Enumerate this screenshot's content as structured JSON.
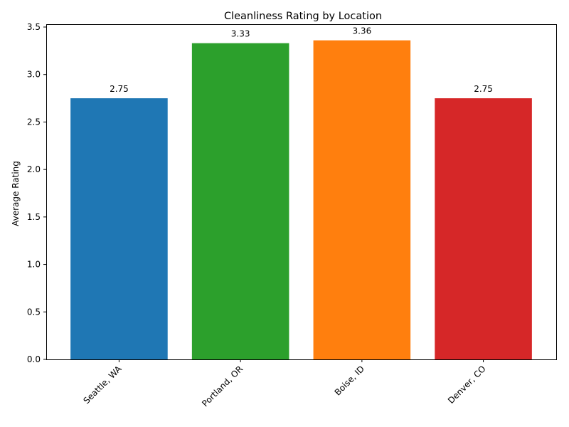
{
  "chart_data": {
    "type": "bar",
    "title": "Cleanliness Rating by Location",
    "xlabel": "",
    "ylabel": "Average Rating",
    "categories": [
      "Seattle, WA",
      "Portland, OR",
      "Boise, ID",
      "Denver, CO"
    ],
    "values": [
      2.75,
      3.33,
      3.36,
      2.75
    ],
    "data_labels": [
      "2.75",
      "3.33",
      "3.36",
      "2.75"
    ],
    "colors": [
      "#1f77b4",
      "#2ca02c",
      "#ff7f0e",
      "#d62728"
    ],
    "ylim": [
      0,
      3.53
    ],
    "yticks": [
      0.0,
      0.5,
      1.0,
      1.5,
      2.0,
      2.5,
      3.0,
      3.5
    ],
    "ytick_labels": [
      "0.0",
      "0.5",
      "1.0",
      "1.5",
      "2.0",
      "2.5",
      "3.0",
      "3.5"
    ],
    "grid": false,
    "legend": "none",
    "xtick_rotation_deg": 45
  }
}
